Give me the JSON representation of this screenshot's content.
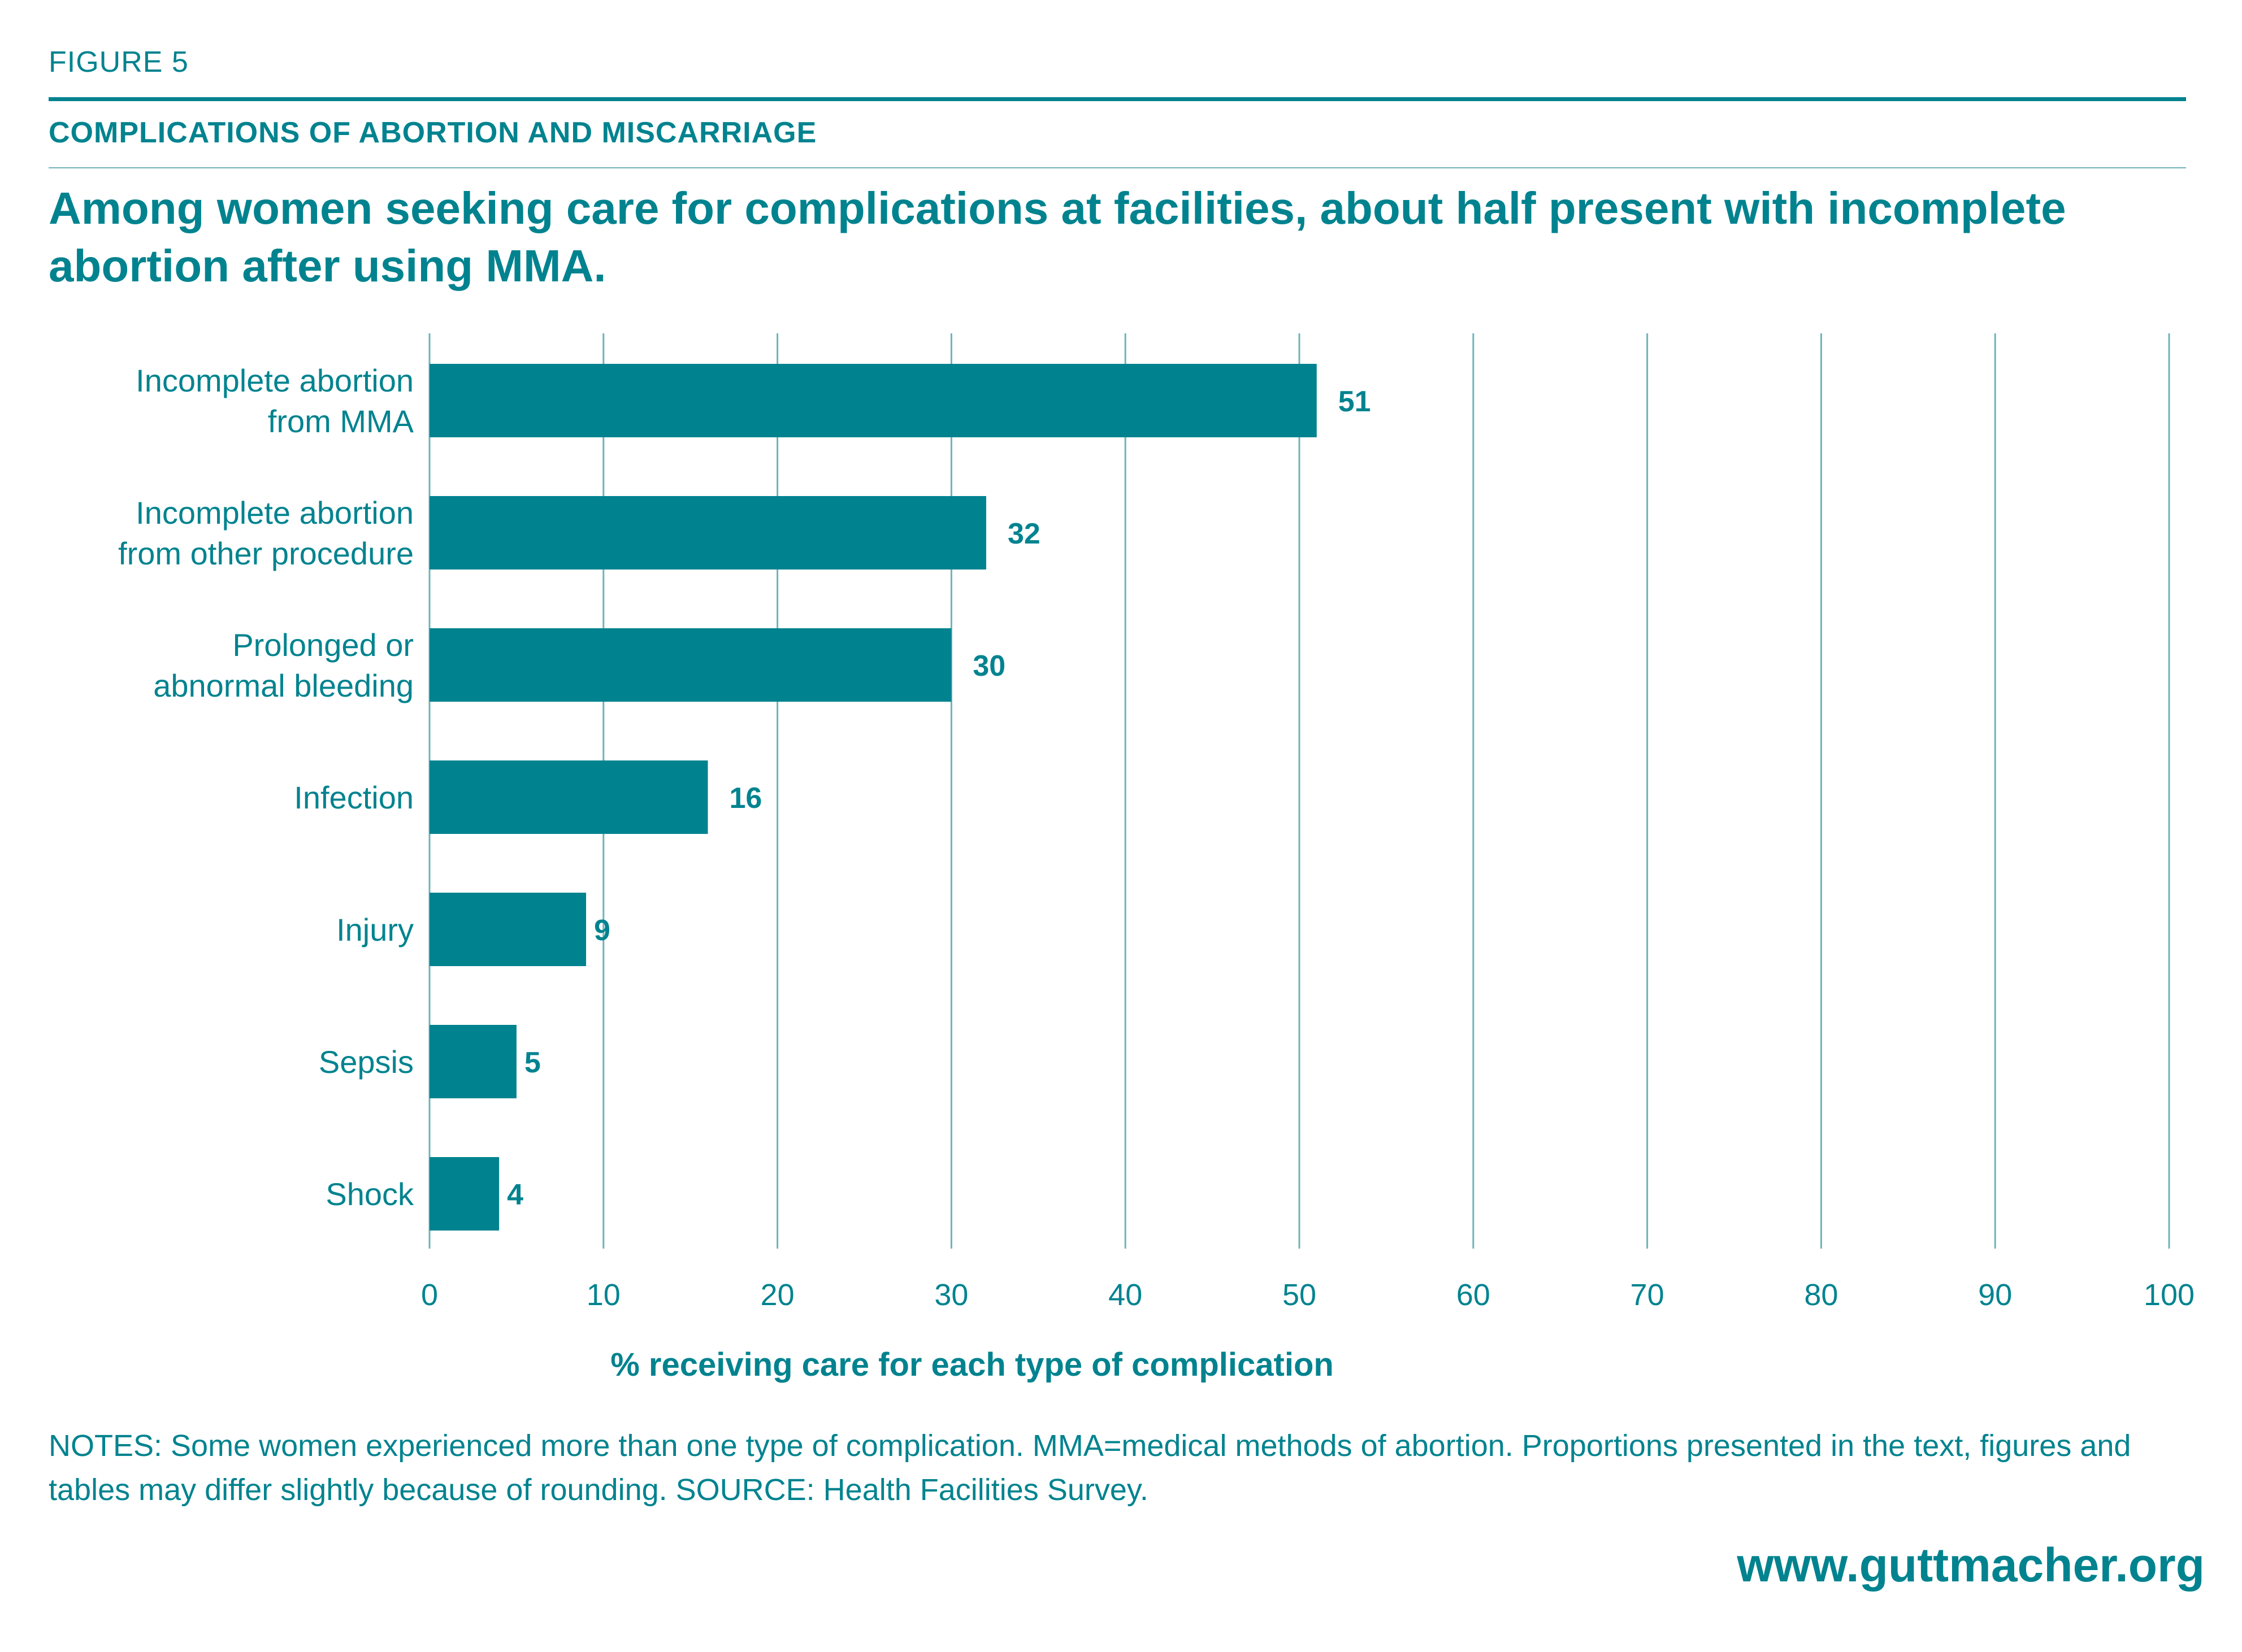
{
  "figure_label": "FIGURE 5",
  "section_title": "COMPLICATIONS OF ABORTION AND MISCARRIAGE",
  "headline": "Among women seeking care for complications at facilities, about half present with incomplete abortion after using MMA.",
  "notes": "NOTES: Some women experienced more than one type of complication. MMA=medical methods of abortion. Proportions presented in the text, figures and tables may differ slightly because of rounding. SOURCE: Health Facilities Survey.",
  "site_url": "www.guttmacher.org",
  "colors": {
    "accent": "#00838f",
    "gridline": "#6fb3b9"
  },
  "chart_data": {
    "type": "bar",
    "orientation": "horizontal",
    "categories": [
      [
        "Incomplete abortion",
        "from MMA"
      ],
      [
        "Incomplete abortion",
        "from other procedure"
      ],
      [
        "Prolonged or",
        "abnormal bleeding"
      ],
      [
        "Infection"
      ],
      [
        "Injury"
      ],
      [
        "Sepsis"
      ],
      [
        "Shock"
      ]
    ],
    "values": [
      51,
      32,
      30,
      16,
      9,
      5,
      4
    ],
    "xlabel": "% receiving care for each type of complication",
    "xlim": [
      0,
      100
    ],
    "xticks": [
      0,
      10,
      20,
      30,
      40,
      50,
      60,
      70,
      80,
      90,
      100
    ],
    "grid": true
  }
}
